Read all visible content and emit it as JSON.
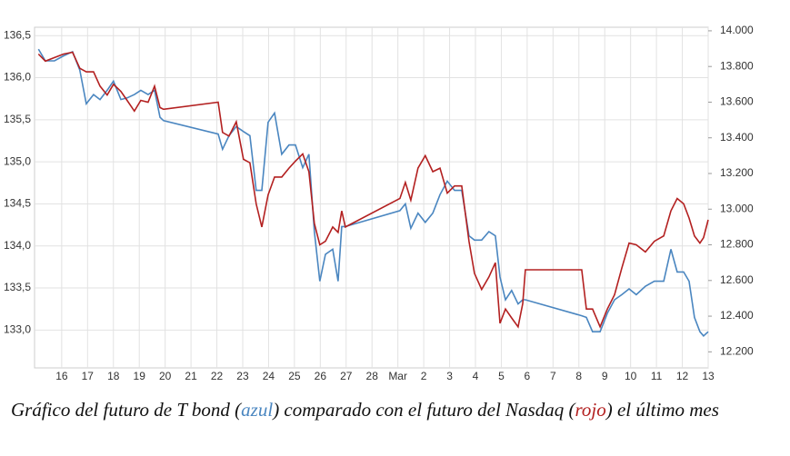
{
  "chart_data": {
    "type": "line",
    "x": [
      -0.9,
      -0.63,
      -0.28,
      0.07,
      0.42,
      0.7,
      0.95,
      1.23,
      1.48,
      1.76,
      2.0,
      2.29,
      2.53,
      2.81,
      3.06,
      3.34,
      3.59,
      3.8,
      3.94,
      6.05,
      6.22,
      6.47,
      6.75,
      7.03,
      7.28,
      7.52,
      7.74,
      7.98,
      8.23,
      8.51,
      8.79,
      9.04,
      9.32,
      9.56,
      9.77,
      9.98,
      10.2,
      10.48,
      10.69,
      10.83,
      10.97,
      13.08,
      13.29,
      13.5,
      13.78,
      14.06,
      14.35,
      14.63,
      14.91,
      15.19,
      15.47,
      15.75,
      15.96,
      16.24,
      16.52,
      16.77,
      16.95,
      17.16,
      17.4,
      17.65,
      17.83,
      17.93,
      20.11,
      20.29,
      20.53,
      20.82,
      21.1,
      21.38,
      21.66,
      21.94,
      22.22,
      22.57,
      22.92,
      23.28,
      23.56,
      23.8,
      24.05,
      24.26,
      24.47,
      24.68,
      24.82,
      25.0
    ],
    "series": [
      {
        "color": "#4a86c0",
        "values": [
          136.34,
          136.2,
          136.2,
          136.26,
          136.31,
          136.09,
          135.69,
          135.8,
          135.74,
          135.85,
          135.96,
          135.74,
          135.76,
          135.8,
          135.85,
          135.8,
          135.85,
          135.53,
          135.49,
          135.33,
          135.15,
          135.31,
          135.42,
          135.36,
          135.31,
          134.66,
          134.66,
          135.47,
          135.58,
          135.09,
          135.2,
          135.2,
          134.93,
          135.09,
          134.17,
          133.58,
          133.9,
          133.96,
          133.58,
          134.23,
          134.23,
          134.42,
          134.5,
          134.21,
          134.39,
          134.28,
          134.39,
          134.61,
          134.77,
          134.66,
          134.66,
          134.12,
          134.07,
          134.07,
          134.17,
          134.12,
          133.63,
          133.36,
          133.47,
          133.31,
          133.36,
          133.36,
          133.17,
          133.15,
          132.98,
          132.98,
          133.2,
          133.36,
          133.42,
          133.49,
          133.42,
          133.52,
          133.58,
          133.58,
          133.96,
          133.69,
          133.69,
          133.58,
          133.15,
          132.98,
          132.93,
          132.98
        ]
      },
      {
        "color": "#b32020",
        "axis": "y2",
        "values": [
          13870,
          13830,
          13850,
          13870,
          13880,
          13790,
          13770,
          13770,
          13690,
          13640,
          13700,
          13660,
          13610,
          13550,
          13610,
          13600,
          13690,
          13570,
          13560,
          13600,
          13430,
          13410,
          13490,
          13280,
          13260,
          13030,
          12900,
          13080,
          13180,
          13180,
          13230,
          13270,
          13310,
          13210,
          12920,
          12800,
          12820,
          12900,
          12870,
          12990,
          12900,
          13060,
          13150,
          13050,
          13230,
          13300,
          13210,
          13230,
          13090,
          13130,
          13130,
          12820,
          12640,
          12550,
          12620,
          12700,
          12360,
          12440,
          12390,
          12340,
          12470,
          12660,
          12660,
          12440,
          12440,
          12340,
          12440,
          12520,
          12670,
          12810,
          12800,
          12760,
          12820,
          12850,
          12990,
          13060,
          13030,
          12950,
          12850,
          12810,
          12840,
          12940
        ]
      }
    ],
    "xlim": [
      -1.05,
      25
    ],
    "xticks": [
      {
        "value": 0,
        "label": "16"
      },
      {
        "value": 1,
        "label": "17"
      },
      {
        "value": 2,
        "label": "18"
      },
      {
        "value": 3,
        "label": "19"
      },
      {
        "value": 4,
        "label": "20"
      },
      {
        "value": 5,
        "label": "21"
      },
      {
        "value": 6,
        "label": "22"
      },
      {
        "value": 7,
        "label": "23"
      },
      {
        "value": 8,
        "label": "24"
      },
      {
        "value": 9,
        "label": "25"
      },
      {
        "value": 10,
        "label": "26"
      },
      {
        "value": 11,
        "label": "27"
      },
      {
        "value": 12,
        "label": "28"
      },
      {
        "value": 13,
        "label": "Mar"
      },
      {
        "value": 14,
        "label": "2"
      },
      {
        "value": 15,
        "label": "3"
      },
      {
        "value": 16,
        "label": "4"
      },
      {
        "value": 17,
        "label": "5"
      },
      {
        "value": 18,
        "label": "6"
      },
      {
        "value": 19,
        "label": "7"
      },
      {
        "value": 20,
        "label": "8"
      },
      {
        "value": 21,
        "label": "9"
      },
      {
        "value": 22,
        "label": "10"
      },
      {
        "value": 23,
        "label": "11"
      },
      {
        "value": 24,
        "label": "12"
      },
      {
        "value": 25,
        "label": "13"
      }
    ],
    "ylim": [
      132.55,
      136.6
    ],
    "yticks": [
      {
        "value": 133.0,
        "label": "133,0"
      },
      {
        "value": 133.5,
        "label": "133,5"
      },
      {
        "value": 134.0,
        "label": "134,0"
      },
      {
        "value": 134.5,
        "label": "134,5"
      },
      {
        "value": 135.0,
        "label": "135,0"
      },
      {
        "value": 135.5,
        "label": "135,5"
      },
      {
        "value": 136.0,
        "label": "136,0"
      },
      {
        "value": 136.5,
        "label": "136,5"
      }
    ],
    "y2lim": [
      12110,
      14020
    ],
    "y2ticks": [
      {
        "value": 12200,
        "label": "12.200"
      },
      {
        "value": 12400,
        "label": "12.400"
      },
      {
        "value": 12600,
        "label": "12.600"
      },
      {
        "value": 12800,
        "label": "12.800"
      },
      {
        "value": 13000,
        "label": "13.000"
      },
      {
        "value": 13200,
        "label": "13.200"
      },
      {
        "value": 13400,
        "label": "13.400"
      },
      {
        "value": 13600,
        "label": "13.600"
      },
      {
        "value": 13800,
        "label": "13.800"
      },
      {
        "value": 14000,
        "label": "14.000"
      }
    ],
    "grid": true,
    "caption": [
      "Gráfico del futuro de T bond (",
      "azul",
      ") comparado con el futuro del Nasdaq (",
      "rojo",
      ") el último mes"
    ]
  }
}
